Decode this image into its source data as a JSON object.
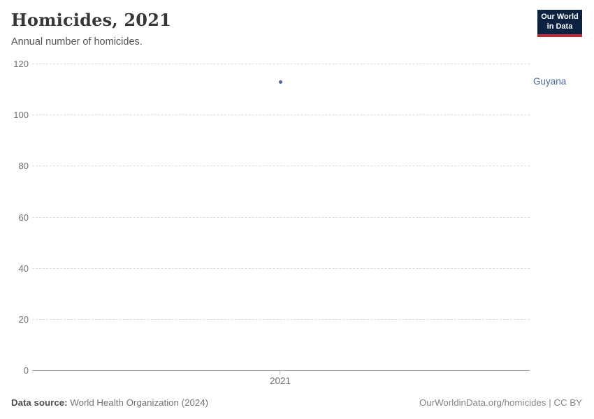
{
  "header": {
    "title": "Homicides, 2021",
    "subtitle": "Annual number of homicides."
  },
  "logo": {
    "line1": "Our World",
    "line2": "in Data",
    "bg_color": "#0b2341",
    "accent_color": "#c32639"
  },
  "chart_data": {
    "type": "scatter",
    "title": "Homicides, 2021",
    "subtitle": "Annual number of homicides.",
    "x": [
      2021
    ],
    "series": [
      {
        "name": "Guyana",
        "values": [
          113
        ]
      }
    ],
    "entity_labels": [
      "Guyana"
    ],
    "xlabel": "",
    "ylabel": "",
    "ylim": [
      0,
      120
    ],
    "y_ticks_topdown": [
      "120",
      "100",
      "80",
      "60",
      "40",
      "20",
      "0"
    ],
    "x_tick_labels": [
      "2021"
    ],
    "grid": "horizontal-dashed",
    "legend_position": "right-inline-label",
    "point_color": "#4c6a9c",
    "label_color": "#4c6a9c"
  },
  "footer": {
    "source_label": "Data source:",
    "source_text": " World Health Organization (2024)",
    "attribution": "OurWorldinData.org/homicides | CC BY"
  }
}
